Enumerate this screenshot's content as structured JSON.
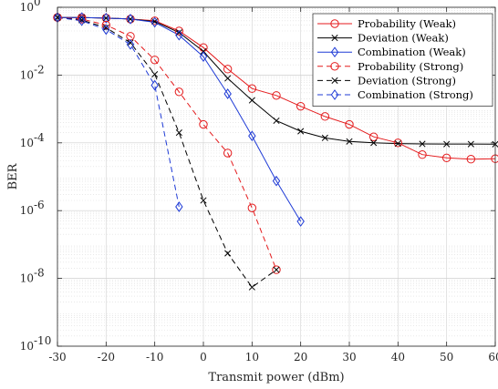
{
  "chart_data": {
    "type": "line",
    "xlabel": "Transmit power (dBm)",
    "ylabel": "BER",
    "xlim": [
      -30,
      60
    ],
    "ylim": [
      1e-10,
      1
    ],
    "yscale": "log",
    "grid": true,
    "legend_placement": "top-right",
    "x_ticks": [
      -30,
      -20,
      -10,
      0,
      10,
      20,
      30,
      40,
      50,
      60
    ],
    "x_tick_labels": [
      "-30",
      "-20",
      "-10",
      "0",
      "10",
      "20",
      "30",
      "40",
      "50",
      "60"
    ],
    "y_ticks": [
      1e-10,
      1e-08,
      1e-06,
      0.0001,
      0.01,
      1
    ],
    "y_tick_labels": [
      {
        "base": "10",
        "exp": "-10"
      },
      {
        "base": "10",
        "exp": "-8"
      },
      {
        "base": "10",
        "exp": "-6"
      },
      {
        "base": "10",
        "exp": "-4"
      },
      {
        "base": "10",
        "exp": "-2"
      },
      {
        "base": "10",
        "exp": "0"
      }
    ],
    "series": [
      {
        "name": "Probability (Weak)",
        "color": "#e41a1c",
        "dash": "solid",
        "marker": "circle",
        "x": [
          -30,
          -25,
          -20,
          -15,
          -10,
          -5,
          0,
          5,
          10,
          15,
          20,
          25,
          30,
          35,
          40,
          45,
          50,
          55,
          60
        ],
        "y": [
          0.5,
          0.5,
          0.48,
          0.45,
          0.4,
          0.2,
          0.065,
          0.015,
          0.004,
          0.0025,
          0.0012,
          0.0006,
          0.00035,
          0.00015,
          0.0001,
          4.5e-05,
          3.6e-05,
          3.3e-05,
          3.4e-05
        ]
      },
      {
        "name": "Deviation (Weak)",
        "color": "#000000",
        "dash": "solid",
        "marker": "x",
        "x": [
          -30,
          -25,
          -20,
          -15,
          -10,
          -5,
          0,
          5,
          10,
          15,
          20,
          25,
          30,
          35,
          40,
          45,
          50,
          55,
          60
        ],
        "y": [
          0.5,
          0.5,
          0.48,
          0.45,
          0.38,
          0.18,
          0.05,
          0.008,
          0.0018,
          0.00045,
          0.00022,
          0.00014,
          0.00011,
          0.0001,
          9.5e-05,
          9.3e-05,
          9.2e-05,
          9.2e-05,
          9.1e-05
        ]
      },
      {
        "name": "Combination (Weak)",
        "color": "#1f3bd6",
        "dash": "solid",
        "marker": "diamond",
        "x": [
          -30,
          -25,
          -20,
          -15,
          -10,
          -5,
          0,
          5,
          10,
          15,
          20
        ],
        "y": [
          0.5,
          0.5,
          0.48,
          0.45,
          0.36,
          0.15,
          0.035,
          0.0028,
          0.00016,
          7.5e-06,
          4.8e-07
        ]
      },
      {
        "name": "Probability (Strong)",
        "color": "#e41a1c",
        "dash": "dashed",
        "marker": "circle",
        "x": [
          -30,
          -25,
          -20,
          -15,
          -10,
          -5,
          0,
          5,
          10,
          15
        ],
        "y": [
          0.5,
          0.45,
          0.3,
          0.14,
          0.028,
          0.0032,
          0.00035,
          5e-05,
          1.2e-06,
          1.8e-08
        ]
      },
      {
        "name": "Deviation (Strong)",
        "color": "#000000",
        "dash": "dashed",
        "marker": "x",
        "x": [
          -30,
          -25,
          -20,
          -15,
          -10,
          -5,
          0,
          5,
          10,
          15
        ],
        "y": [
          0.5,
          0.42,
          0.25,
          0.09,
          0.0105,
          0.0002,
          2e-06,
          5.5e-08,
          5.5e-09,
          1.8e-08
        ]
      },
      {
        "name": "Combination (Strong)",
        "color": "#1f3bd6",
        "dash": "dashed",
        "marker": "diamond",
        "x": [
          -30,
          -25,
          -20,
          -15,
          -10,
          -5
        ],
        "y": [
          0.5,
          0.4,
          0.22,
          0.08,
          0.005,
          1.3e-06
        ]
      }
    ]
  }
}
